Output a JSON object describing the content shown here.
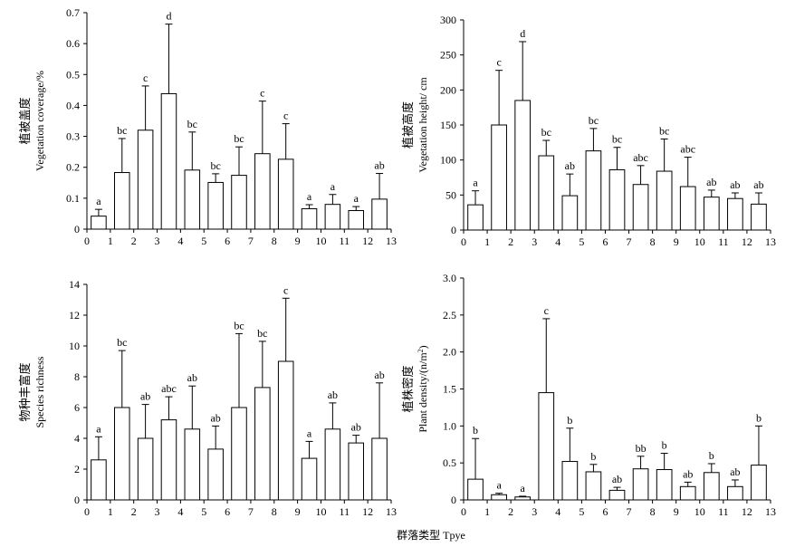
{
  "figure": {
    "shared_xlabel": "群落类型 Tpye"
  },
  "chart_data": [
    {
      "type": "bar",
      "ylabel_cn": "植被盖度",
      "ylabel_en": "Vegetation coverage/%",
      "categories": [
        "1",
        "2",
        "3",
        "4",
        "5",
        "6",
        "7",
        "8",
        "9",
        "10",
        "11",
        "12",
        "13"
      ],
      "x_zero_tick": "0",
      "values": [
        0.042,
        0.183,
        0.32,
        0.438,
        0.191,
        0.151,
        0.174,
        0.244,
        0.226,
        0.066,
        0.08,
        0.06,
        0.097
      ],
      "errors": [
        0.022,
        0.11,
        0.143,
        0.225,
        0.123,
        0.028,
        0.092,
        0.17,
        0.115,
        0.013,
        0.032,
        0.013,
        0.083
      ],
      "labels": [
        "a",
        "bc",
        "c",
        "d",
        "bc",
        "bc",
        "bc",
        "c",
        "c",
        "a",
        "a",
        "a",
        "ab"
      ],
      "ylim": [
        0,
        0.7
      ],
      "yticks": [
        0,
        0.1,
        0.2,
        0.3,
        0.4,
        0.5,
        0.6,
        0.7
      ],
      "ytick_labels": [
        "0",
        "0.1",
        "0.2",
        "0.3",
        "0.4",
        "0.5",
        "0.6",
        "0.7"
      ],
      "grid": false,
      "legend": "none"
    },
    {
      "type": "bar",
      "ylabel_cn": "植被高度",
      "ylabel_en": "Vegetation height/ cm",
      "categories": [
        "1",
        "2",
        "3",
        "4",
        "5",
        "6",
        "7",
        "8",
        "9",
        "10",
        "11",
        "12",
        "13"
      ],
      "x_zero_tick": "0",
      "values": [
        36,
        150,
        185,
        106,
        49,
        113,
        86,
        65,
        84,
        62,
        47,
        45,
        37
      ],
      "errors": [
        20,
        78,
        84,
        22,
        31,
        32,
        32,
        27,
        46,
        42,
        10,
        8,
        16
      ],
      "labels": [
        "a",
        "c",
        "d",
        "bc",
        "ab",
        "bc",
        "bc",
        "abc",
        "bc",
        "abc",
        "ab",
        "ab",
        "ab"
      ],
      "ylim": [
        0,
        300
      ],
      "yticks": [
        0,
        50,
        100,
        150,
        200,
        250,
        300
      ],
      "ytick_labels": [
        "0",
        "50",
        "100",
        "150",
        "200",
        "250",
        "300"
      ],
      "grid": false,
      "legend": "none"
    },
    {
      "type": "bar",
      "ylabel_cn": "物种丰富度",
      "ylabel_en": "Species richness",
      "categories": [
        "1",
        "2",
        "3",
        "4",
        "5",
        "6",
        "7",
        "8",
        "9",
        "10",
        "11",
        "12",
        "13"
      ],
      "x_zero_tick": "0",
      "values": [
        2.6,
        6.0,
        4.0,
        5.2,
        4.6,
        3.3,
        6.0,
        7.3,
        9.0,
        2.7,
        4.6,
        3.7,
        4.0
      ],
      "errors": [
        1.5,
        3.7,
        2.2,
        1.5,
        2.8,
        1.5,
        4.8,
        3.0,
        4.1,
        1.1,
        1.7,
        0.5,
        3.6
      ],
      "labels": [
        "a",
        "bc",
        "ab",
        "abc",
        "ab",
        "ab",
        "bc",
        "bc",
        "c",
        "a",
        "ab",
        "ab",
        "ab"
      ],
      "ylim": [
        0,
        14
      ],
      "yticks": [
        0,
        2,
        4,
        6,
        8,
        10,
        12,
        14
      ],
      "ytick_labels": [
        "0",
        "2",
        "4",
        "6",
        "8",
        "10",
        "12",
        "14"
      ],
      "grid": false,
      "legend": "none"
    },
    {
      "type": "bar",
      "ylabel_cn": "植株密度",
      "ylabel_en": "Plant density/(n/m",
      "ylabel_en_sup": "2",
      "ylabel_en_end": ")",
      "categories": [
        "1",
        "2",
        "3",
        "4",
        "5",
        "6",
        "7",
        "8",
        "9",
        "10",
        "11",
        "12",
        "13"
      ],
      "x_zero_tick": "0",
      "values": [
        0.28,
        0.07,
        0.04,
        1.45,
        0.52,
        0.38,
        0.13,
        0.42,
        0.41,
        0.18,
        0.37,
        0.18,
        0.47
      ],
      "errors": [
        0.55,
        0.02,
        0.01,
        1.0,
        0.45,
        0.1,
        0.04,
        0.17,
        0.22,
        0.06,
        0.12,
        0.09,
        0.53
      ],
      "labels": [
        "b",
        "a",
        "a",
        "c",
        "b",
        "b",
        "ab",
        "bb",
        "b",
        "ab",
        "b",
        "ab",
        "b"
      ],
      "ylim": [
        0,
        3.0
      ],
      "yticks": [
        0,
        0.5,
        1.0,
        1.5,
        2.0,
        2.5,
        3.0
      ],
      "ytick_labels": [
        "0",
        "0.5",
        "1.0",
        "1.5",
        "2.0",
        "2.5",
        "3.0"
      ],
      "grid": false,
      "legend": "none"
    }
  ]
}
